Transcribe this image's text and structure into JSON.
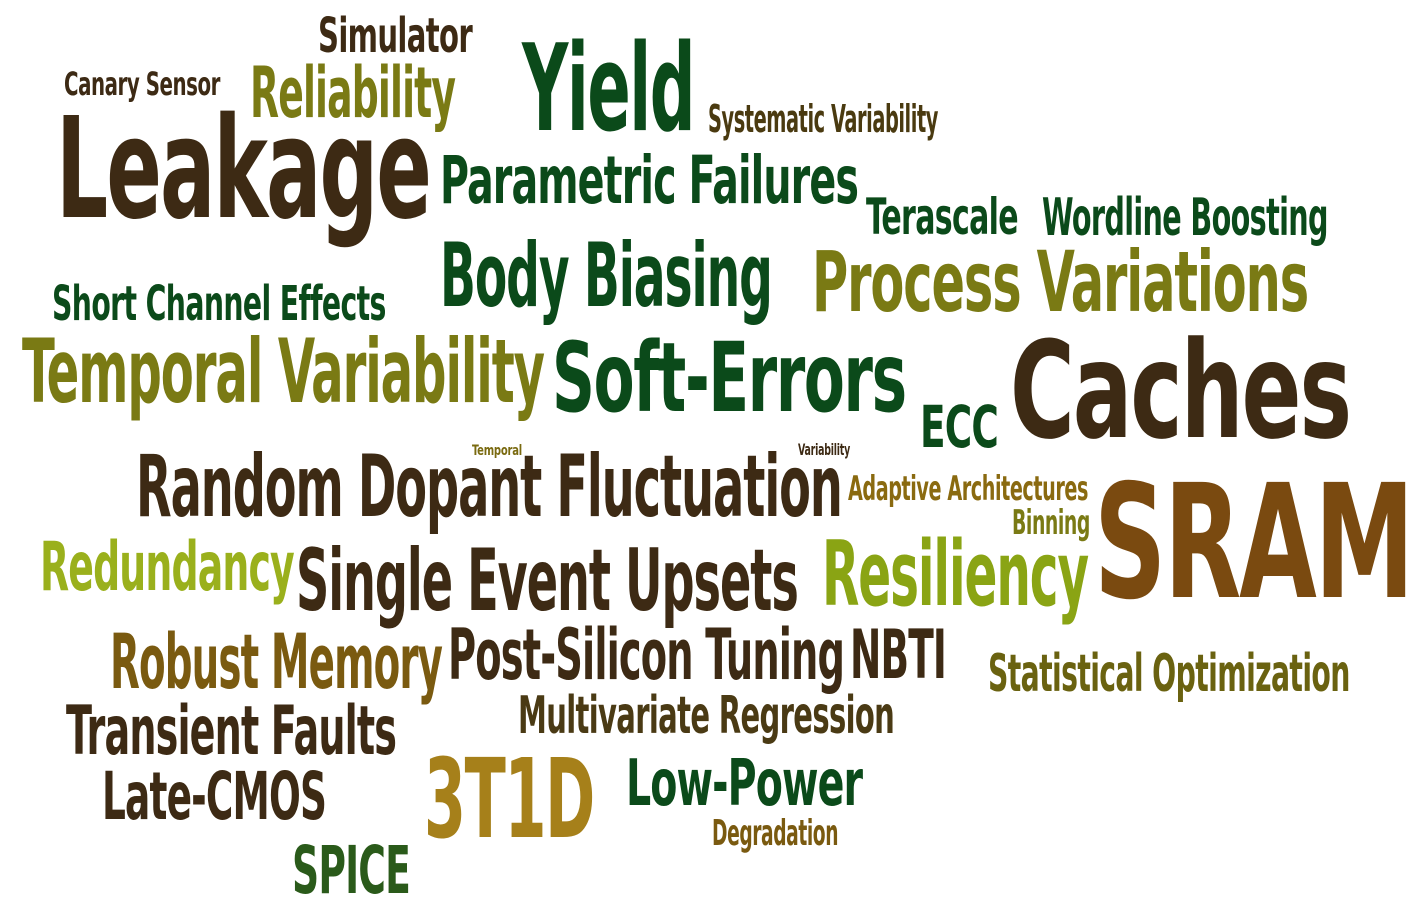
{
  "words": [
    {
      "text": "Simulator",
      "color": "#3d2a14"
    },
    {
      "text": "Canary Sensor",
      "color": "#3d2a14"
    },
    {
      "text": "Reliability",
      "color": "#7a7a14"
    },
    {
      "text": "Yield",
      "color": "#0b4a1a"
    },
    {
      "text": "Systematic Variability",
      "color": "#4a3a10"
    },
    {
      "text": "Leakage",
      "color": "#3d2a14"
    },
    {
      "text": "Parametric Failures",
      "color": "#0b4a1a"
    },
    {
      "text": "Terascale",
      "color": "#0b4a1a"
    },
    {
      "text": "Wordline Boosting",
      "color": "#0b4a1a"
    },
    {
      "text": "Body Biasing",
      "color": "#0b4a1a"
    },
    {
      "text": "Process Variations",
      "color": "#7a7a14"
    },
    {
      "text": "Short Channel Effects",
      "color": "#0b4a1a"
    },
    {
      "text": "Temporal Variability",
      "color": "#7a7a14"
    },
    {
      "text": "Soft-Errors",
      "color": "#0b4a1a"
    },
    {
      "text": "ECC",
      "color": "#0b4a1a"
    },
    {
      "text": "Caches",
      "color": "#3d2a14"
    },
    {
      "text": "Temporal",
      "color": "#7a6a10"
    },
    {
      "text": "Variability",
      "color": "#3d2a14"
    },
    {
      "text": "Random Dopant Fluctuation",
      "color": "#3d2a14"
    },
    {
      "text": "Adaptive Architectures",
      "color": "#8a6a10"
    },
    {
      "text": "Binning",
      "color": "#7a7a14"
    },
    {
      "text": "SRAM",
      "color": "#7a4a10"
    },
    {
      "text": "Redundancy",
      "color": "#9ab01c"
    },
    {
      "text": "Single Event Upsets",
      "color": "#3d2a14"
    },
    {
      "text": "Resiliency",
      "color": "#8aa414"
    },
    {
      "text": "Robust Memory",
      "color": "#7a5a10"
    },
    {
      "text": "Post-Silicon Tuning",
      "color": "#3d2a14"
    },
    {
      "text": "NBTI",
      "color": "#3d2a14"
    },
    {
      "text": "Statistical Optimization",
      "color": "#6a6210"
    },
    {
      "text": "Multivariate Regression",
      "color": "#4a3a14"
    },
    {
      "text": "Transient Faults",
      "color": "#3d2a14"
    },
    {
      "text": "3T1D",
      "color": "#a6801a"
    },
    {
      "text": "Low-Power",
      "color": "#0b4a1a"
    },
    {
      "text": "Late-CMOS",
      "color": "#3d2a14"
    },
    {
      "text": "Degradation",
      "color": "#7a5a10"
    },
    {
      "text": "SPICE",
      "color": "#2a5a1a"
    }
  ]
}
